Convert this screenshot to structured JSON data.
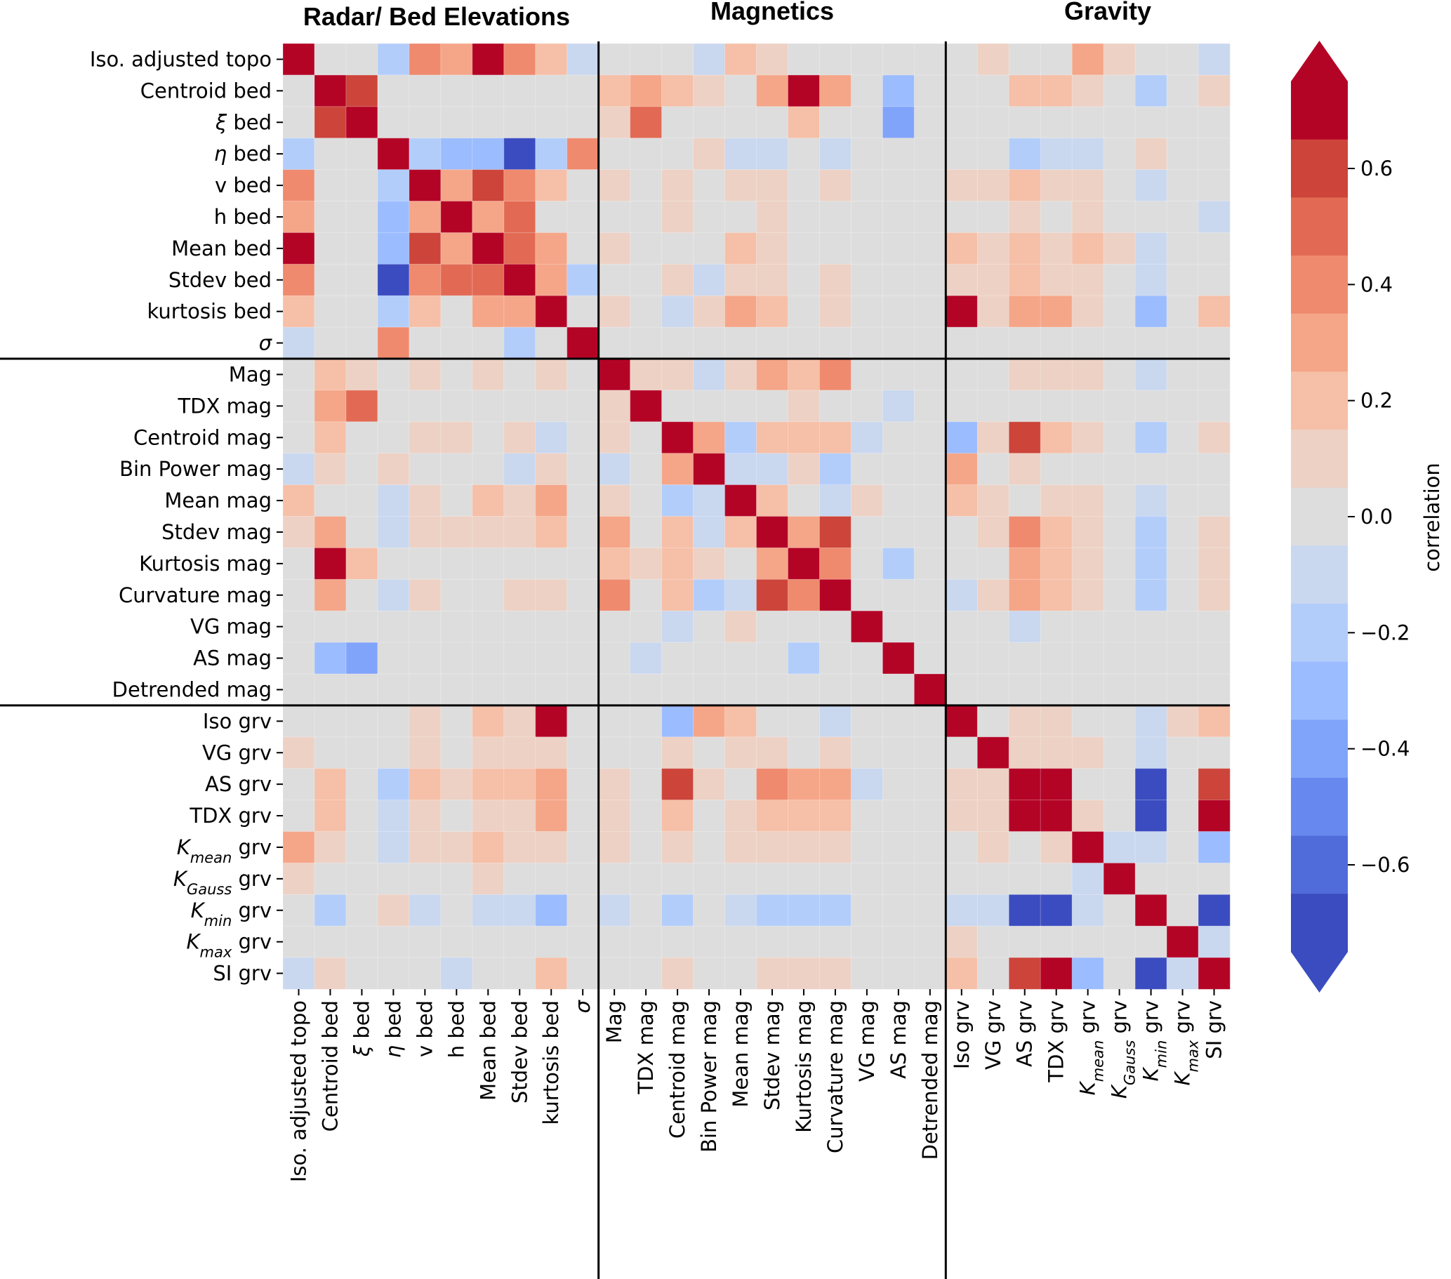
{
  "chart_data": {
    "type": "heatmap",
    "title": "",
    "section_titles": [
      "Radar/ Bed Elevations",
      "Magnetics",
      "Gravity"
    ],
    "sections": [
      {
        "name": "Radar/ Bed Elevations",
        "start": 0,
        "count": 10
      },
      {
        "name": "Magnetics",
        "start": 10,
        "count": 11
      },
      {
        "name": "Gravity",
        "start": 21,
        "count": 9
      }
    ],
    "labels": [
      {
        "base": "Iso. adjusted topo",
        "sym": "",
        "sub": "",
        "suffix": ""
      },
      {
        "base": "Centroid bed",
        "sym": "",
        "sub": "",
        "suffix": ""
      },
      {
        "base": "",
        "sym": "ξ",
        "sub": "",
        "suffix": " bed"
      },
      {
        "base": "",
        "sym": "η",
        "sub": "",
        "suffix": " bed"
      },
      {
        "base": "v bed",
        "sym": "",
        "sub": "",
        "suffix": ""
      },
      {
        "base": "h bed",
        "sym": "",
        "sub": "",
        "suffix": ""
      },
      {
        "base": "Mean bed",
        "sym": "",
        "sub": "",
        "suffix": ""
      },
      {
        "base": "Stdev bed",
        "sym": "",
        "sub": "",
        "suffix": ""
      },
      {
        "base": "kurtosis bed",
        "sym": "",
        "sub": "",
        "suffix": ""
      },
      {
        "base": "",
        "sym": "σ",
        "sub": "",
        "suffix": ""
      },
      {
        "base": "Mag",
        "sym": "",
        "sub": "",
        "suffix": ""
      },
      {
        "base": "TDX mag",
        "sym": "",
        "sub": "",
        "suffix": ""
      },
      {
        "base": "Centroid mag",
        "sym": "",
        "sub": "",
        "suffix": ""
      },
      {
        "base": "Bin Power mag",
        "sym": "",
        "sub": "",
        "suffix": ""
      },
      {
        "base": "Mean mag",
        "sym": "",
        "sub": "",
        "suffix": ""
      },
      {
        "base": "Stdev mag",
        "sym": "",
        "sub": "",
        "suffix": ""
      },
      {
        "base": "Kurtosis mag",
        "sym": "",
        "sub": "",
        "suffix": ""
      },
      {
        "base": "Curvature mag",
        "sym": "",
        "sub": "",
        "suffix": ""
      },
      {
        "base": "VG mag",
        "sym": "",
        "sub": "",
        "suffix": ""
      },
      {
        "base": "AS mag",
        "sym": "",
        "sub": "",
        "suffix": ""
      },
      {
        "base": "Detrended mag",
        "sym": "",
        "sub": "",
        "suffix": ""
      },
      {
        "base": "Iso grv",
        "sym": "",
        "sub": "",
        "suffix": ""
      },
      {
        "base": "VG grv",
        "sym": "",
        "sub": "",
        "suffix": ""
      },
      {
        "base": "AS grv",
        "sym": "",
        "sub": "",
        "suffix": ""
      },
      {
        "base": "TDX grv",
        "sym": "",
        "sub": "",
        "suffix": ""
      },
      {
        "base": "",
        "sym": "K",
        "sub": "mean",
        "suffix": " grv"
      },
      {
        "base": "",
        "sym": "K",
        "sub": "Gauss",
        "suffix": " grv"
      },
      {
        "base": "",
        "sym": "K",
        "sub": "min",
        "suffix": " grv"
      },
      {
        "base": "",
        "sym": "K",
        "sub": "max",
        "suffix": " grv"
      },
      {
        "base": "SI grv",
        "sym": "",
        "sub": "",
        "suffix": ""
      }
    ],
    "values": [
      [
        0.7,
        0,
        0,
        -0.2,
        0.4,
        0.3,
        0.7,
        0.4,
        0.2,
        -0.1,
        0,
        0,
        0,
        -0.1,
        0.2,
        0.1,
        0,
        0,
        0,
        0,
        0,
        0,
        0.1,
        0,
        0,
        0.3,
        0.1,
        0,
        0,
        -0.1
      ],
      [
        0,
        0.7,
        0.6,
        0,
        0,
        0,
        0,
        0,
        0,
        0,
        0.2,
        0.3,
        0.2,
        0.1,
        0,
        0.3,
        0.7,
        0.3,
        0,
        -0.3,
        0,
        0,
        0,
        0.2,
        0.2,
        0.1,
        0,
        -0.2,
        0,
        0.1
      ],
      [
        0,
        0.6,
        0.7,
        0,
        0,
        0,
        0,
        0,
        0,
        0,
        0.1,
        0.5,
        0,
        0,
        0,
        0,
        0.2,
        0,
        0,
        -0.4,
        0,
        0,
        0,
        0,
        0,
        0,
        0,
        0,
        0,
        0
      ],
      [
        -0.2,
        0,
        0,
        0.7,
        -0.2,
        -0.3,
        -0.3,
        -0.7,
        -0.2,
        0.4,
        0,
        0,
        0,
        0.1,
        -0.1,
        -0.1,
        0,
        -0.1,
        0,
        0,
        0,
        0,
        0,
        -0.2,
        -0.1,
        -0.1,
        0,
        0.1,
        0,
        0
      ],
      [
        0.4,
        0,
        0,
        -0.2,
        0.7,
        0.3,
        0.6,
        0.4,
        0.2,
        0,
        0.1,
        0,
        0.1,
        0,
        0.1,
        0.1,
        0,
        0.1,
        0,
        0,
        0,
        0.1,
        0.1,
        0.2,
        0.1,
        0.1,
        0,
        -0.1,
        0,
        0
      ],
      [
        0.3,
        0,
        0,
        -0.3,
        0.3,
        0.7,
        0.3,
        0.5,
        0,
        0,
        0,
        0,
        0.1,
        0,
        0,
        0.1,
        0,
        0,
        0,
        0,
        0,
        0,
        0,
        0.1,
        0,
        0.1,
        0,
        0,
        0,
        -0.1
      ],
      [
        0.7,
        0,
        0,
        -0.3,
        0.6,
        0.3,
        0.7,
        0.5,
        0.3,
        0,
        0.1,
        0,
        0,
        0,
        0.2,
        0.1,
        0,
        0,
        0,
        0,
        0,
        0.2,
        0.1,
        0.2,
        0.1,
        0.2,
        0.1,
        -0.1,
        0,
        0
      ],
      [
        0.4,
        0,
        0,
        -0.7,
        0.4,
        0.5,
        0.5,
        0.7,
        0.3,
        -0.2,
        0,
        0,
        0.1,
        -0.1,
        0.1,
        0.1,
        0,
        0.1,
        0,
        0,
        0,
        0.1,
        0.1,
        0.2,
        0.1,
        0.1,
        0,
        -0.1,
        0,
        0
      ],
      [
        0.2,
        0,
        0,
        -0.2,
        0.2,
        0,
        0.3,
        0.3,
        0.7,
        0,
        0.1,
        0,
        -0.1,
        0.1,
        0.3,
        0.2,
        0,
        0.1,
        0,
        0,
        0,
        0.7,
        0.1,
        0.3,
        0.3,
        0.1,
        0,
        -0.3,
        0,
        0.2
      ],
      [
        -0.1,
        0,
        0,
        0.4,
        0,
        0,
        0,
        -0.2,
        0,
        0.7,
        0,
        0,
        0,
        0,
        0,
        0,
        0,
        0,
        0,
        0,
        0,
        0,
        0,
        0,
        0,
        0,
        0,
        0,
        0,
        0
      ],
      [
        0,
        0.2,
        0.1,
        0,
        0.1,
        0,
        0.1,
        0,
        0.1,
        0,
        0.7,
        0.1,
        0.1,
        -0.1,
        0.1,
        0.3,
        0.2,
        0.4,
        0,
        0,
        0,
        0,
        0,
        0.1,
        0.1,
        0.1,
        0,
        -0.1,
        0,
        0
      ],
      [
        0,
        0.3,
        0.5,
        0,
        0,
        0,
        0,
        0,
        0,
        0,
        0.1,
        0.7,
        0,
        0,
        0,
        0,
        0.1,
        0,
        0,
        -0.1,
        0,
        0,
        0,
        0,
        0,
        0,
        0,
        0,
        0,
        0
      ],
      [
        0,
        0.2,
        0,
        0,
        0.1,
        0.1,
        0,
        0.1,
        -0.1,
        0,
        0.1,
        0,
        0.7,
        0.3,
        -0.2,
        0.2,
        0.2,
        0.2,
        -0.1,
        0,
        0,
        -0.3,
        0.1,
        0.6,
        0.2,
        0.1,
        0,
        -0.2,
        0,
        0.1
      ],
      [
        -0.1,
        0.1,
        0,
        0.1,
        0,
        0,
        0,
        -0.1,
        0.1,
        0,
        -0.1,
        0,
        0.3,
        0.7,
        -0.1,
        -0.1,
        0.1,
        -0.2,
        0,
        0,
        0,
        0.3,
        0,
        0.1,
        0,
        0,
        0,
        0,
        0,
        0
      ],
      [
        0.2,
        0,
        0,
        -0.1,
        0.1,
        0,
        0.2,
        0.1,
        0.3,
        0,
        0.1,
        0,
        -0.2,
        -0.1,
        0.7,
        0.2,
        0,
        -0.1,
        0.1,
        0,
        0,
        0.2,
        0.1,
        0,
        0.1,
        0.1,
        0,
        -0.1,
        0,
        0
      ],
      [
        0.1,
        0.3,
        0,
        -0.1,
        0.1,
        0.1,
        0.1,
        0.1,
        0.2,
        0,
        0.3,
        0,
        0.2,
        -0.1,
        0.2,
        0.7,
        0.3,
        0.6,
        0,
        0,
        0,
        0,
        0.1,
        0.4,
        0.2,
        0.1,
        0,
        -0.2,
        0,
        0.1
      ],
      [
        0,
        0.7,
        0.2,
        0,
        0,
        0,
        0,
        0,
        0,
        0,
        0.2,
        0.1,
        0.2,
        0.1,
        0,
        0.3,
        0.7,
        0.4,
        0,
        -0.2,
        0,
        0,
        0,
        0.3,
        0.2,
        0.1,
        0,
        -0.2,
        0,
        0.1
      ],
      [
        0,
        0.3,
        0,
        -0.1,
        0.1,
        0,
        0,
        0.1,
        0.1,
        0,
        0.4,
        0,
        0.2,
        -0.2,
        -0.1,
        0.6,
        0.4,
        0.7,
        0,
        0,
        0,
        -0.1,
        0.1,
        0.3,
        0.2,
        0.1,
        0,
        -0.2,
        0,
        0.1
      ],
      [
        0,
        0,
        0,
        0,
        0,
        0,
        0,
        0,
        0,
        0,
        0,
        0,
        -0.1,
        0,
        0.1,
        0,
        0,
        0,
        0.7,
        0,
        0,
        0,
        0,
        -0.1,
        0,
        0,
        0,
        0,
        0,
        0
      ],
      [
        0,
        -0.3,
        -0.4,
        0,
        0,
        0,
        0,
        0,
        0,
        0,
        0,
        -0.1,
        0,
        0,
        0,
        0,
        -0.2,
        0,
        0,
        0.7,
        0,
        0,
        0,
        0,
        0,
        0,
        0,
        0,
        0,
        0
      ],
      [
        0,
        0,
        0,
        0,
        0,
        0,
        0,
        0,
        0,
        0,
        0,
        0,
        0,
        0,
        0,
        0,
        0,
        0,
        0,
        0,
        0.7,
        0,
        0,
        0,
        0,
        0,
        0,
        0,
        0,
        0
      ],
      [
        0,
        0,
        0,
        0,
        0.1,
        0,
        0.2,
        0.1,
        0.7,
        0,
        0,
        0,
        -0.3,
        0.3,
        0.2,
        0,
        0,
        -0.1,
        0,
        0,
        0,
        0.7,
        0,
        0.1,
        0.1,
        0,
        0,
        -0.1,
        0.1,
        0.2
      ],
      [
        0.1,
        0,
        0,
        0,
        0.1,
        0,
        0.1,
        0.1,
        0.1,
        0,
        0,
        0,
        0.1,
        0,
        0.1,
        0.1,
        0,
        0.1,
        0,
        0,
        0,
        0,
        0.7,
        0.1,
        0.1,
        0.1,
        0,
        -0.1,
        0,
        0
      ],
      [
        0,
        0.2,
        0,
        -0.2,
        0.2,
        0.1,
        0.2,
        0.2,
        0.3,
        0,
        0.1,
        0,
        0.6,
        0.1,
        0,
        0.4,
        0.3,
        0.3,
        -0.1,
        0,
        0,
        0.1,
        0.1,
        0.7,
        0.7,
        0,
        0,
        -0.7,
        0,
        0.6
      ],
      [
        0,
        0.2,
        0,
        -0.1,
        0.1,
        0,
        0.1,
        0.1,
        0.3,
        0,
        0.1,
        0,
        0.2,
        0,
        0.1,
        0.2,
        0.2,
        0.2,
        0,
        0,
        0,
        0.1,
        0.1,
        0.7,
        0.7,
        0.1,
        0,
        -0.7,
        0,
        0.7
      ],
      [
        0.3,
        0.1,
        0,
        -0.1,
        0.1,
        0.1,
        0.2,
        0.1,
        0.1,
        0,
        0.1,
        0,
        0.1,
        0,
        0.1,
        0.1,
        0.1,
        0.1,
        0,
        0,
        0,
        0,
        0.1,
        0,
        0.1,
        0.7,
        -0.1,
        -0.1,
        0,
        -0.3
      ],
      [
        0.1,
        0,
        0,
        0,
        0,
        0,
        0.1,
        0,
        0,
        0,
        0,
        0,
        0,
        0,
        0,
        0,
        0,
        0,
        0,
        0,
        0,
        0,
        0,
        0,
        0,
        -0.1,
        0.7,
        0,
        0,
        0
      ],
      [
        0,
        -0.2,
        0,
        0.1,
        -0.1,
        0,
        -0.1,
        -0.1,
        -0.3,
        0,
        -0.1,
        0,
        -0.2,
        0,
        -0.1,
        -0.2,
        -0.2,
        -0.2,
        0,
        0,
        0,
        -0.1,
        -0.1,
        -0.7,
        -0.7,
        -0.1,
        0,
        0.7,
        0,
        -0.7
      ],
      [
        0,
        0,
        0,
        0,
        0,
        0,
        0,
        0,
        0,
        0,
        0,
        0,
        0,
        0,
        0,
        0,
        0,
        0,
        0,
        0,
        0,
        0.1,
        0,
        0,
        0,
        0,
        0,
        0,
        0.7,
        -0.1
      ],
      [
        -0.1,
        0.1,
        0,
        0,
        0,
        -0.1,
        0,
        0,
        0.2,
        0,
        0,
        0,
        0.1,
        0,
        0,
        0.1,
        0.1,
        0.1,
        0,
        0,
        0,
        0.2,
        0,
        0.6,
        0.7,
        -0.3,
        0,
        -0.7,
        -0.1,
        0.7
      ]
    ],
    "colorbar": {
      "label": "correlation",
      "vmin": -0.75,
      "vmax": 0.75,
      "extend": "both",
      "ticks": [
        0.6,
        0.4,
        0.2,
        0.0,
        -0.2,
        -0.4,
        -0.6
      ],
      "tick_labels": [
        "0.6",
        "0.4",
        "0.2",
        "0.0",
        "−0.2",
        "−0.4",
        "−0.6"
      ],
      "levels": [
        {
          "value": 0.7,
          "color": "#b40426"
        },
        {
          "value": 0.6,
          "color": "#cc443a"
        },
        {
          "value": 0.5,
          "color": "#e26a54"
        },
        {
          "value": 0.4,
          "color": "#ef8a6e"
        },
        {
          "value": 0.3,
          "color": "#f5a688"
        },
        {
          "value": 0.2,
          "color": "#f6bfa7"
        },
        {
          "value": 0.1,
          "color": "#edd1c4"
        },
        {
          "value": 0.0,
          "color": "#dddddd"
        },
        {
          "value": -0.1,
          "color": "#c9d7ef"
        },
        {
          "value": -0.2,
          "color": "#b3cdfb"
        },
        {
          "value": -0.3,
          "color": "#9bbcff"
        },
        {
          "value": -0.4,
          "color": "#81a4fb"
        },
        {
          "value": -0.5,
          "color": "#6788ee"
        },
        {
          "value": -0.6,
          "color": "#506bda"
        },
        {
          "value": -0.7,
          "color": "#3b4cc0"
        }
      ]
    },
    "xlabel": "",
    "ylabel": "",
    "grid": false,
    "legend": "colorbar-right"
  }
}
